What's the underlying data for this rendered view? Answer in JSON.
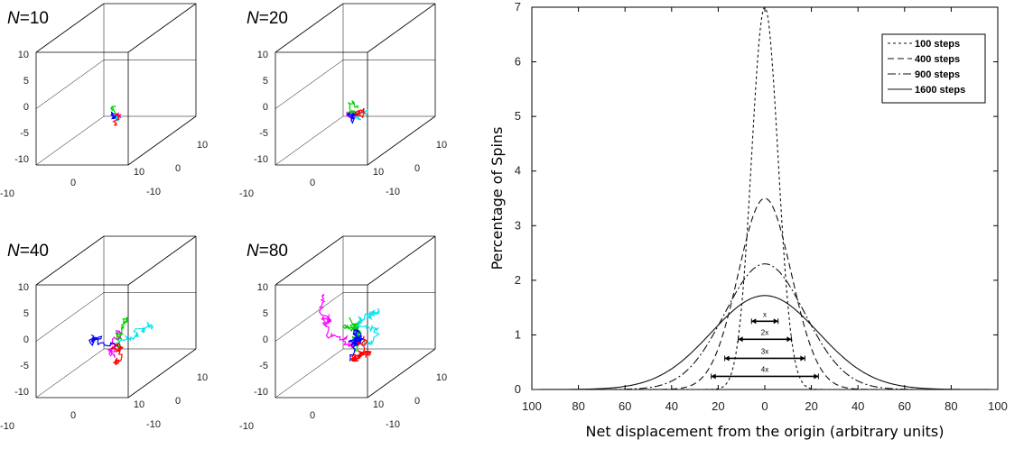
{
  "panels": [
    {
      "title_n": "N",
      "title_rest": "=10",
      "steps": 10,
      "scale": 1
    },
    {
      "title_n": "N",
      "title_rest": "=20",
      "steps": 20,
      "scale": 1
    },
    {
      "title_n": "N",
      "title_rest": "=40",
      "steps": 40,
      "scale": 1
    },
    {
      "title_n": "N",
      "title_rest": "=80",
      "steps": 80,
      "scale": 1
    }
  ],
  "walk_colors": [
    "#ff00ff",
    "#00cc00",
    "#00e5ee",
    "#0000ff",
    "#ff0000"
  ],
  "panel_ticks": {
    "vertical": [
      "10",
      "5",
      "0",
      "-5",
      "-10"
    ],
    "front": [
      "-10",
      "0",
      "10"
    ],
    "depth": [
      "-10",
      "0",
      "10"
    ]
  },
  "chart_data": {
    "type": "line",
    "title": "",
    "xlabel": "Net displacement from the origin (arbitrary units)",
    "ylabel": "Percentage of Spins",
    "xlim": [
      -100,
      100
    ],
    "ylim": [
      0,
      7
    ],
    "xtick_values": [
      -100,
      -80,
      -60,
      -40,
      -20,
      0,
      20,
      40,
      60,
      80,
      100
    ],
    "xtick_labels": [
      "100",
      "80",
      "60",
      "40",
      "20",
      "0",
      "20",
      "40",
      "60",
      "80",
      "100"
    ],
    "ytick_values": [
      0,
      1,
      2,
      3,
      4,
      5,
      6,
      7
    ],
    "ytick_labels": [
      "0",
      "1",
      "2",
      "3",
      "4",
      "5",
      "6",
      "7"
    ],
    "legend_position": "top-right",
    "series": [
      {
        "name": "100 steps",
        "steps": 100,
        "sigma": 5.7,
        "peak": 7.0,
        "dash": "3,3"
      },
      {
        "name": "400 steps",
        "steps": 400,
        "sigma": 11.4,
        "peak": 3.5,
        "dash": "7,4"
      },
      {
        "name": "900 steps",
        "steps": 900,
        "sigma": 17.2,
        "peak": 2.3,
        "dash": "9,3,2,3"
      },
      {
        "name": "1600 steps",
        "steps": 1600,
        "sigma": 23.0,
        "peak": 1.72,
        "dash": ""
      }
    ],
    "annotations": [
      {
        "label": "x",
        "from": -5.7,
        "to": 5.7,
        "y": 1.25
      },
      {
        "label": "2x",
        "from": -11.4,
        "to": 11.4,
        "y": 0.92
      },
      {
        "label": "3x",
        "from": -17.2,
        "to": 17.2,
        "y": 0.57
      },
      {
        "label": "4x",
        "from": -23.0,
        "to": 23.0,
        "y": 0.24
      }
    ]
  }
}
